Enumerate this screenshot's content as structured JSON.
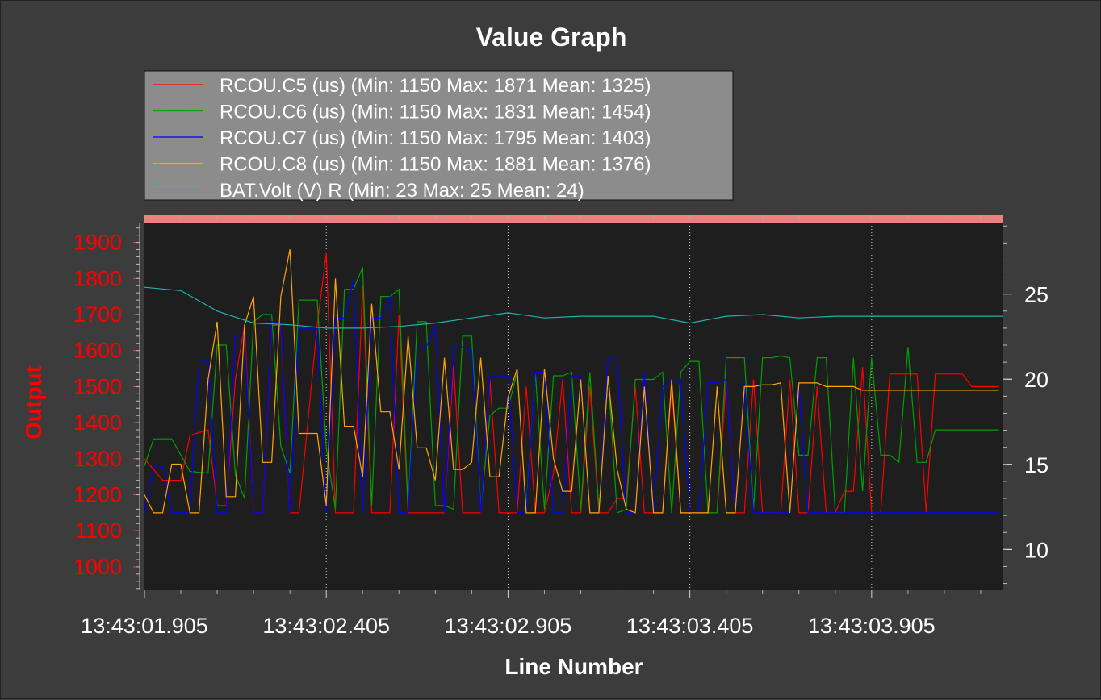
{
  "chart_data": {
    "type": "line",
    "title": "Value Graph",
    "xlabel": "Line Number",
    "ylabel": "Output",
    "grid": "vertical dotted",
    "legend_position": "top-left",
    "background": "#1e1e1e",
    "top_band_color": "#f08080",
    "x_ticks": [
      "13:43:01.905",
      "13:43:02.405",
      "13:43:02.905",
      "13:43:03.405",
      "13:43:03.905"
    ],
    "xlim": [
      0,
      2.36
    ],
    "ylim_left": [
      935,
      1955
    ],
    "yticks_left": [
      1000,
      1100,
      1200,
      1300,
      1400,
      1500,
      1600,
      1700,
      1800,
      1900
    ],
    "ylim_right": [
      7.6,
      29.2
    ],
    "yticks_right": [
      10,
      15,
      20,
      25
    ],
    "series": [
      {
        "name": "RCOU.C5 (us) (Min: 1150 Max: 1871 Mean: 1325)",
        "axis": "left",
        "color": "#ff0000",
        "x": [
          0,
          0.05,
          0.1,
          0.125,
          0.175,
          0.2,
          0.225,
          0.25,
          0.275,
          0.3,
          0.325,
          0.35,
          0.375,
          0.4,
          0.425,
          0.475,
          0.5,
          0.525,
          0.55,
          0.575,
          0.6,
          0.625,
          0.65,
          0.675,
          0.7,
          0.725,
          0.75,
          0.775,
          0.8,
          0.825,
          0.85,
          0.875,
          0.9,
          0.925,
          0.95,
          0.975,
          1.0,
          1.025,
          1.05,
          1.075,
          1.1,
          1.125,
          1.15,
          1.175,
          1.2,
          1.225,
          1.25,
          1.275,
          1.3,
          1.325,
          1.35,
          1.375,
          1.4,
          1.425,
          1.45,
          1.475,
          1.5,
          1.525,
          1.55,
          1.575,
          1.6,
          1.625,
          1.65,
          1.675,
          1.7,
          1.725,
          1.75,
          1.775,
          1.8,
          1.825,
          1.85,
          1.875,
          1.9,
          1.925,
          1.95,
          1.975,
          2.0,
          2.025,
          2.05,
          2.075,
          2.1,
          2.125,
          2.15,
          2.175,
          2.2,
          2.225,
          2.25,
          2.275,
          2.3,
          2.325,
          2.35
        ],
        "values": [
          1300,
          1240,
          1240,
          1365,
          1380,
          1170,
          1170,
          1520,
          1670,
          1150,
          1150,
          1670,
          1670,
          1150,
          1150,
          1670,
          1871,
          1150,
          1150,
          1150,
          1780,
          1150,
          1150,
          1150,
          1700,
          1150,
          1150,
          1150,
          1150,
          1150,
          1560,
          1150,
          1150,
          1150,
          1520,
          1150,
          1150,
          1150,
          1500,
          1150,
          1150,
          1260,
          1520,
          1150,
          1150,
          1500,
          1150,
          1150,
          1190,
          1190,
          1500,
          1150,
          1150,
          1150,
          1500,
          1150,
          1150,
          1150,
          1150,
          1150,
          1520,
          1150,
          1150,
          1520,
          1150,
          1150,
          1150,
          1520,
          1150,
          1150,
          1500,
          1150,
          1150,
          1210,
          1210,
          1555,
          1150,
          1150,
          1535,
          1535,
          1535,
          1535,
          1150,
          1535,
          1535,
          1535,
          1535,
          1500,
          1500,
          1500,
          1500
        ]
      },
      {
        "name": "RCOU.C6 (us) (Min: 1150 Max: 1831 Mean: 1454)",
        "axis": "left",
        "color": "#00a000",
        "x": [
          0,
          0.025,
          0.075,
          0.125,
          0.175,
          0.2,
          0.225,
          0.25,
          0.275,
          0.3,
          0.325,
          0.35,
          0.375,
          0.4,
          0.425,
          0.475,
          0.5,
          0.525,
          0.55,
          0.575,
          0.6,
          0.625,
          0.65,
          0.675,
          0.7,
          0.725,
          0.75,
          0.775,
          0.8,
          0.825,
          0.85,
          0.875,
          0.9,
          0.925,
          0.95,
          0.975,
          1.0,
          1.025,
          1.05,
          1.075,
          1.1,
          1.125,
          1.15,
          1.175,
          1.2,
          1.225,
          1.25,
          1.275,
          1.3,
          1.325,
          1.35,
          1.375,
          1.4,
          1.425,
          1.45,
          1.475,
          1.5,
          1.525,
          1.55,
          1.575,
          1.6,
          1.625,
          1.65,
          1.675,
          1.7,
          1.725,
          1.75,
          1.775,
          1.8,
          1.825,
          1.85,
          1.875,
          1.9,
          1.925,
          1.95,
          1.975,
          2.0,
          2.025,
          2.05,
          2.075,
          2.1,
          2.125,
          2.15,
          2.175,
          2.2,
          2.225,
          2.25,
          2.275,
          2.3,
          2.325,
          2.35
        ],
        "values": [
          1280,
          1355,
          1355,
          1265,
          1260,
          1615,
          1615,
          1255,
          1190,
          1680,
          1700,
          1700,
          1335,
          1260,
          1740,
          1740,
          1330,
          1160,
          1770,
          1770,
          1831,
          1170,
          1750,
          1750,
          1770,
          1160,
          1680,
          1680,
          1170,
          1170,
          1160,
          1640,
          1640,
          1160,
          1420,
          1440,
          1440,
          1540,
          1160,
          1540,
          1160,
          1530,
          1530,
          1540,
          1160,
          1540,
          1160,
          1530,
          1150,
          1160,
          1520,
          1520,
          1520,
          1540,
          1150,
          1540,
          1570,
          1570,
          1150,
          1150,
          1580,
          1580,
          1580,
          1160,
          1580,
          1580,
          1585,
          1580,
          1310,
          1310,
          1580,
          1580,
          1150,
          1150,
          1580,
          1210,
          1580,
          1310,
          1310,
          1290,
          1610,
          1290,
          1290,
          1380,
          1380,
          1380,
          1380,
          1380,
          1380,
          1380,
          1380
        ]
      },
      {
        "name": "RCOU.C7 (us) (Min: 1150 Max: 1795 Mean: 1403)",
        "axis": "left",
        "color": "#0000ff",
        "x": [
          0,
          0.025,
          0.05,
          0.075,
          0.1,
          0.125,
          0.15,
          0.175,
          0.2,
          0.225,
          0.25,
          0.275,
          0.3,
          0.325,
          0.35,
          0.375,
          0.4,
          0.425,
          0.475,
          0.5,
          0.525,
          0.55,
          0.575,
          0.6,
          0.625,
          0.65,
          0.675,
          0.7,
          0.725,
          0.75,
          0.775,
          0.8,
          0.825,
          0.85,
          0.875,
          0.9,
          0.925,
          0.95,
          0.975,
          1.0,
          1.025,
          1.05,
          1.075,
          1.1,
          1.125,
          1.15,
          1.175,
          1.2,
          1.225,
          1.25,
          1.275,
          1.3,
          1.325,
          1.35,
          1.375,
          1.4,
          1.425,
          1.45,
          1.475,
          1.5,
          1.525,
          1.55,
          1.575,
          1.6,
          1.625,
          1.65,
          1.675,
          1.7,
          1.725,
          1.75,
          1.775,
          1.8,
          1.825,
          1.85,
          1.875,
          1.9,
          1.925,
          1.95,
          1.975,
          2.0,
          2.025,
          2.05,
          2.075,
          2.1,
          2.125,
          2.15,
          2.175,
          2.2,
          2.225,
          2.25,
          2.275,
          2.3,
          2.325,
          2.35
        ],
        "values": [
          1150,
          1280,
          1280,
          1150,
          1150,
          1150,
          1570,
          1570,
          1150,
          1150,
          1640,
          1640,
          1150,
          1150,
          1680,
          1680,
          1150,
          1660,
          1660,
          1150,
          1690,
          1690,
          1795,
          1150,
          1690,
          1690,
          1750,
          1150,
          1150,
          1610,
          1610,
          1670,
          1150,
          1610,
          1610,
          1600,
          1150,
          1530,
          1530,
          1530,
          1150,
          1150,
          1540,
          1540,
          1150,
          1150,
          1530,
          1530,
          1150,
          1150,
          1580,
          1580,
          1150,
          1150,
          1540,
          1150,
          1500,
          1520,
          1520,
          1150,
          1150,
          1510,
          1510,
          1520,
          1150,
          1510,
          1150,
          1150,
          1150,
          1150,
          1150,
          1500,
          1150,
          1150,
          1150,
          1150,
          1150,
          1150,
          1150,
          1150,
          1150,
          1150,
          1150,
          1150,
          1150,
          1150,
          1150,
          1150,
          1150,
          1150,
          1150,
          1150,
          1150,
          1150
        ]
      },
      {
        "name": "RCOU.C8 (us) (Min: 1150 Max: 1881 Mean: 1376)",
        "axis": "left",
        "color": "#ffa500",
        "x": [
          0,
          0.025,
          0.05,
          0.075,
          0.1,
          0.125,
          0.15,
          0.175,
          0.2,
          0.225,
          0.25,
          0.275,
          0.3,
          0.325,
          0.35,
          0.375,
          0.4,
          0.425,
          0.475,
          0.5,
          0.525,
          0.55,
          0.575,
          0.6,
          0.625,
          0.65,
          0.675,
          0.7,
          0.725,
          0.75,
          0.775,
          0.8,
          0.825,
          0.85,
          0.875,
          0.9,
          0.925,
          0.95,
          0.975,
          1.0,
          1.025,
          1.05,
          1.075,
          1.1,
          1.125,
          1.15,
          1.175,
          1.2,
          1.225,
          1.25,
          1.275,
          1.3,
          1.325,
          1.35,
          1.375,
          1.4,
          1.425,
          1.45,
          1.475,
          1.5,
          1.525,
          1.55,
          1.575,
          1.6,
          1.625,
          1.65,
          1.675,
          1.7,
          1.725,
          1.75,
          1.775,
          1.8,
          1.825,
          1.85,
          1.875,
          1.9,
          1.925,
          1.95,
          1.975,
          2.0,
          2.025,
          2.05,
          2.075,
          2.1,
          2.125,
          2.15,
          2.175,
          2.2,
          2.225,
          2.25,
          2.275,
          2.3,
          2.325,
          2.35
        ],
        "values": [
          1200,
          1150,
          1150,
          1285,
          1285,
          1150,
          1150,
          1520,
          1680,
          1195,
          1195,
          1670,
          1750,
          1290,
          1290,
          1750,
          1881,
          1370,
          1370,
          1170,
          1800,
          1390,
          1390,
          1250,
          1730,
          1430,
          1430,
          1270,
          1640,
          1330,
          1330,
          1240,
          1580,
          1270,
          1270,
          1290,
          1580,
          1250,
          1250,
          1470,
          1550,
          1150,
          1150,
          1550,
          1300,
          1210,
          1210,
          1520,
          1150,
          1150,
          1530,
          1270,
          1160,
          1150,
          1500,
          1150,
          1150,
          1520,
          1150,
          1150,
          1150,
          1150,
          1500,
          1150,
          1150,
          1500,
          1500,
          1505,
          1505,
          1510,
          1150,
          1510,
          1510,
          1510,
          1500,
          1500,
          1500,
          1500,
          1490,
          1490,
          1490,
          1490,
          1490,
          1490,
          1490,
          1490,
          1490,
          1490,
          1490,
          1490,
          1490,
          1490,
          1490,
          1490
        ]
      },
      {
        "name": "BAT.Volt (V) R (Min: 23 Max: 25 Mean: 24)",
        "axis": "right",
        "color": "#20b2aa",
        "x": [
          0,
          0.1,
          0.2,
          0.3,
          0.4,
          0.5,
          0.6,
          0.7,
          0.8,
          0.9,
          1.0,
          1.1,
          1.2,
          1.3,
          1.4,
          1.5,
          1.6,
          1.7,
          1.8,
          1.9,
          2.0,
          2.1,
          2.2,
          2.3,
          2.36
        ],
        "values": [
          25.4,
          25.2,
          24.0,
          23.3,
          23.2,
          23.0,
          23.0,
          23.1,
          23.3,
          23.6,
          23.9,
          23.6,
          23.7,
          23.7,
          23.7,
          23.3,
          23.7,
          23.8,
          23.6,
          23.7,
          23.7,
          23.7,
          23.7,
          23.7,
          23.7
        ]
      }
    ]
  }
}
